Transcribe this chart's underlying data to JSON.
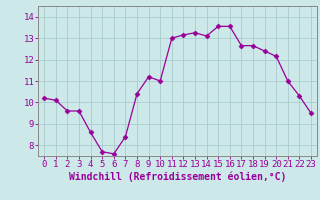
{
  "x": [
    0,
    1,
    2,
    3,
    4,
    5,
    6,
    7,
    8,
    9,
    10,
    11,
    12,
    13,
    14,
    15,
    16,
    17,
    18,
    19,
    20,
    21,
    22,
    23
  ],
  "y": [
    10.2,
    10.1,
    9.6,
    9.6,
    8.6,
    7.7,
    7.6,
    8.4,
    10.4,
    11.2,
    11.0,
    13.0,
    13.15,
    13.25,
    13.1,
    13.55,
    13.55,
    12.65,
    12.65,
    12.4,
    12.15,
    11.0,
    10.3,
    9.5
  ],
  "line_color": "#990099",
  "marker": "D",
  "markersize": 2.5,
  "linewidth": 0.9,
  "bg_color": "#cce8e8",
  "grid_color": "#aacccc",
  "xlabel": "Windchill (Refroidissement éolien,°C)",
  "xlabel_fontsize": 7,
  "xtick_labels": [
    "0",
    "1",
    "2",
    "3",
    "4",
    "5",
    "6",
    "7",
    "8",
    "9",
    "10",
    "11",
    "12",
    "13",
    "14",
    "15",
    "16",
    "17",
    "18",
    "19",
    "20",
    "21",
    "22",
    "23"
  ],
  "ytick_values": [
    8,
    9,
    10,
    11,
    12,
    13,
    14
  ],
  "ylim": [
    7.5,
    14.5
  ],
  "xlim": [
    -0.5,
    23.5
  ],
  "tick_fontsize": 6.5,
  "label_color": "#990099",
  "axis_color": "#888888"
}
